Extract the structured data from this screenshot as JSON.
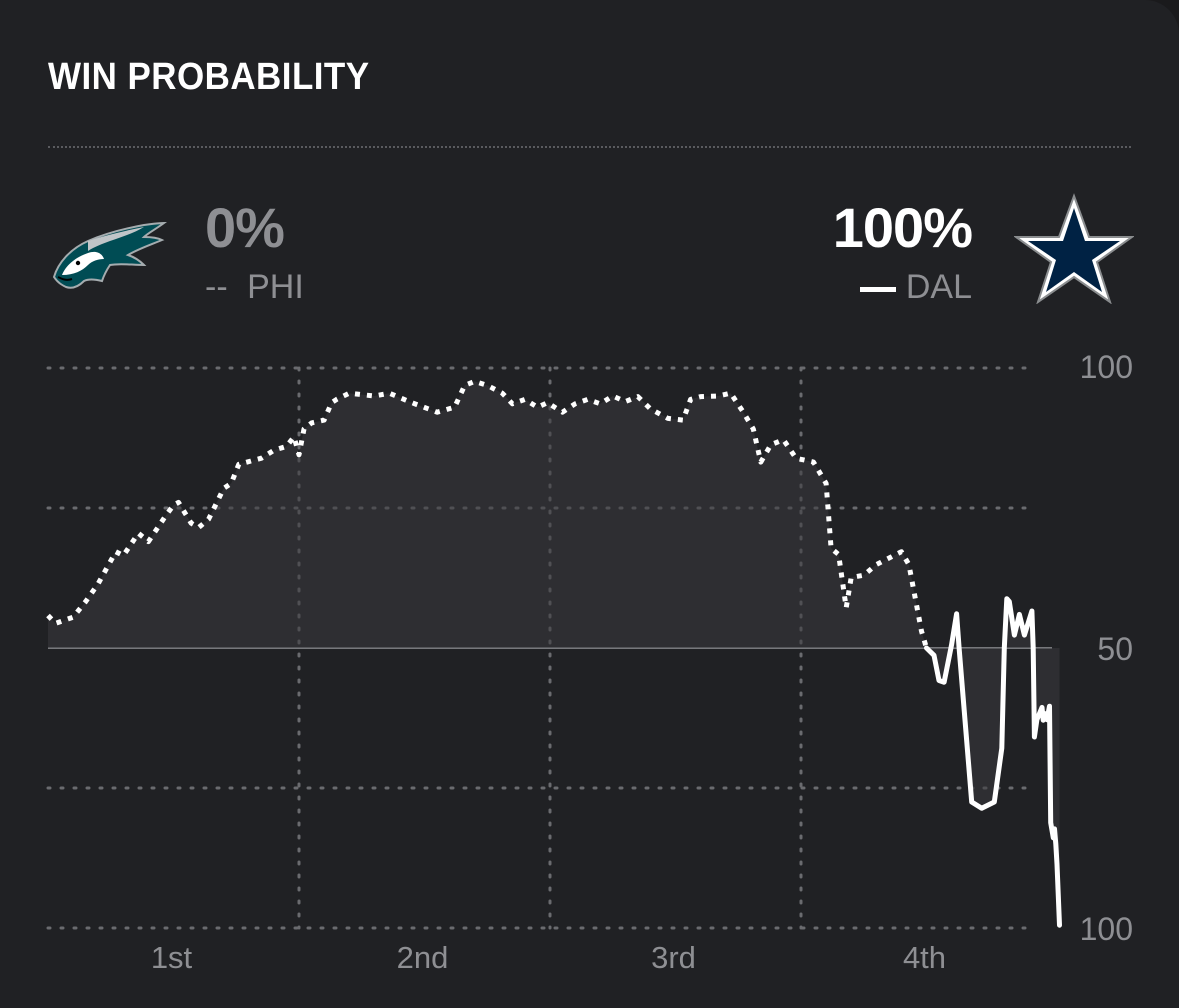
{
  "card": {
    "title": "WIN PROBABILITY"
  },
  "away_team": {
    "abbr": "PHI",
    "line_key": "--",
    "win_pct": "0%",
    "logo": "eagle-logo"
  },
  "home_team": {
    "abbr": "DAL",
    "win_pct": "100%",
    "logo": "star-logo"
  },
  "colors": {
    "background": "#202124",
    "line": "#ffffff",
    "grid": "#6a6b6f",
    "area": "#3a3b3e",
    "muted": "#8e8f93",
    "star_fill": "#002244"
  },
  "chart_data": {
    "type": "line",
    "title": "WIN PROBABILITY",
    "x_unit": "game progress (quarters)",
    "xlim": [
      0,
      4.0
    ],
    "categories": [
      "1st",
      "2nd",
      "3rd",
      "4th"
    ],
    "y_tick_labels": [
      "100",
      "50",
      "100"
    ],
    "ylim": [
      -50,
      50
    ],
    "y_meaning": "positive = PHI win % above 50, negative = DAL win % above 50",
    "grid": true,
    "series": [
      {
        "name": "PHI",
        "style": "dotted",
        "points": [
          [
            0,
            5.8
          ],
          [
            0.03,
            4.4
          ],
          [
            0.1,
            5.5
          ],
          [
            0.15,
            8.3
          ],
          [
            0.2,
            11.5
          ],
          [
            0.27,
            17.2
          ],
          [
            0.3,
            16.5
          ],
          [
            0.36,
            20.5
          ],
          [
            0.4,
            19
          ],
          [
            0.47,
            23.7
          ],
          [
            0.5,
            25.5
          ],
          [
            0.52,
            26
          ],
          [
            0.57,
            22.3
          ],
          [
            0.6,
            21.5
          ],
          [
            0.64,
            23
          ],
          [
            0.7,
            28.5
          ],
          [
            0.73,
            29.4
          ],
          [
            0.76,
            32.8
          ],
          [
            0.85,
            33.9
          ],
          [
            0.9,
            35.3
          ],
          [
            0.95,
            36
          ],
          [
            0.98,
            37.7
          ],
          [
            1.0,
            34.5
          ],
          [
            1.02,
            39.1
          ],
          [
            1.05,
            40.2
          ],
          [
            1.1,
            40.7
          ],
          [
            1.13,
            43.8
          ],
          [
            1.15,
            44.4
          ],
          [
            1.2,
            45.5
          ],
          [
            1.3,
            45
          ],
          [
            1.36,
            45.5
          ],
          [
            1.45,
            43.8
          ],
          [
            1.55,
            42.1
          ],
          [
            1.62,
            43
          ],
          [
            1.66,
            46.9
          ],
          [
            1.7,
            47.6
          ],
          [
            1.75,
            46.9
          ],
          [
            1.81,
            45.5
          ],
          [
            1.85,
            43.6
          ],
          [
            1.9,
            44.4
          ],
          [
            1.95,
            43
          ],
          [
            1.99,
            43.8
          ],
          [
            2.05,
            42.1
          ],
          [
            2.1,
            43.6
          ],
          [
            2.15,
            44.4
          ],
          [
            2.2,
            43.6
          ],
          [
            2.25,
            45
          ],
          [
            2.3,
            44
          ],
          [
            2.35,
            44.9
          ],
          [
            2.4,
            42.7
          ],
          [
            2.47,
            41
          ],
          [
            2.53,
            40.7
          ],
          [
            2.56,
            44.4
          ],
          [
            2.6,
            44.9
          ],
          [
            2.67,
            45
          ],
          [
            2.72,
            45.5
          ],
          [
            2.77,
            42.1
          ],
          [
            2.81,
            39.1
          ],
          [
            2.84,
            33.2
          ],
          [
            2.88,
            36.3
          ],
          [
            2.93,
            37.2
          ],
          [
            2.98,
            33.9
          ],
          [
            3.05,
            33.2
          ],
          [
            3.1,
            29.4
          ],
          [
            3.12,
            17.8
          ],
          [
            3.15,
            16.7
          ],
          [
            3.18,
            7.2
          ],
          [
            3.2,
            12.6
          ],
          [
            3.25,
            13
          ],
          [
            3.3,
            14.9
          ],
          [
            3.4,
            17.2
          ],
          [
            3.43,
            14.9
          ],
          [
            3.48,
            3
          ],
          [
            3.5,
            0
          ]
        ]
      },
      {
        "name": "DAL",
        "style": "solid",
        "points": [
          [
            3.5,
            0
          ],
          [
            3.53,
            -1.3
          ],
          [
            3.55,
            -5.8
          ],
          [
            3.57,
            -6.1
          ],
          [
            3.6,
            0.6
          ],
          [
            3.62,
            6.1
          ],
          [
            3.63,
            0
          ],
          [
            3.68,
            -27.5
          ],
          [
            3.72,
            -28.6
          ],
          [
            3.77,
            -27.5
          ],
          [
            3.8,
            -17.9
          ],
          [
            3.81,
            0
          ],
          [
            3.82,
            8.8
          ],
          [
            3.83,
            8.3
          ],
          [
            3.85,
            2.3
          ],
          [
            3.87,
            6
          ],
          [
            3.89,
            2.3
          ],
          [
            3.92,
            6.6
          ],
          [
            3.925,
            0
          ],
          [
            3.93,
            -15.9
          ],
          [
            3.94,
            -12.8
          ],
          [
            3.96,
            -10.6
          ],
          [
            3.965,
            -12.9
          ],
          [
            3.97,
            -11.7
          ],
          [
            3.98,
            -12.8
          ],
          [
            3.99,
            -10.4
          ],
          [
            3.995,
            -31.2
          ],
          [
            4.005,
            -33.9
          ],
          [
            4.01,
            -32.3
          ],
          [
            4.015,
            -35
          ],
          [
            4.02,
            -38.6
          ],
          [
            4.03,
            -49.5
          ]
        ]
      }
    ]
  }
}
